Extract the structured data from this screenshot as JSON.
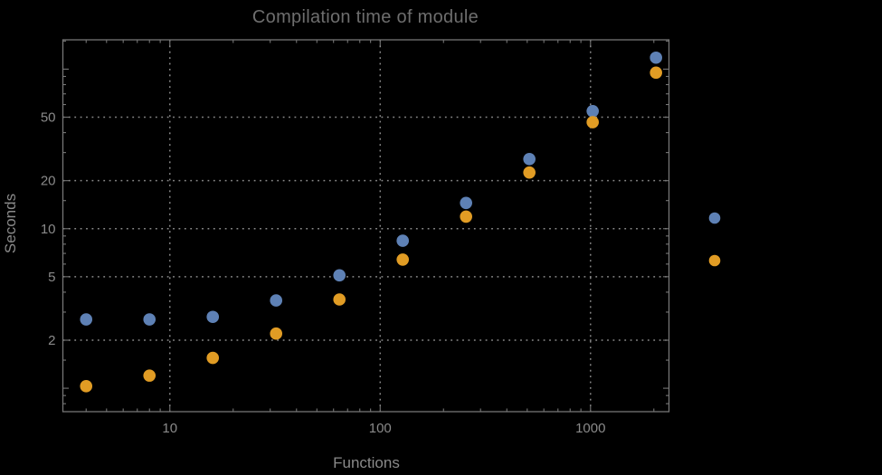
{
  "page": {
    "background": "#000000"
  },
  "colors": {
    "frame": "#757575",
    "grid": "#8A8A8A",
    "tick": "#757575",
    "text": "#8A8A8A",
    "title": "#6E6E6E",
    "series_blue": "#5E81B5",
    "series_orange": "#E19C24"
  },
  "chart_data": {
    "type": "scatter",
    "title": "Compilation time of module",
    "xlabel": "Functions",
    "ylabel": "Seconds",
    "x_scale": "log",
    "y_scale": "log",
    "x_range": [
      3.1,
      2360
    ],
    "y_range": [
      0.713,
      152.7
    ],
    "x_tick_labels": [
      "10",
      "100",
      "1000"
    ],
    "y_tick_labels": [
      "2",
      "5",
      "10",
      "20",
      "50"
    ],
    "x_major_ticks": [
      10,
      100,
      1000
    ],
    "y_major_ticks": [
      2,
      5,
      10,
      20,
      50
    ],
    "x_unlabeled_major_ticks": [],
    "y_unlabeled_major_ticks": [
      1,
      100
    ],
    "x_minor_ticks": [
      4,
      5,
      6,
      7,
      8,
      9,
      20,
      30,
      40,
      50,
      60,
      70,
      80,
      90,
      200,
      300,
      400,
      500,
      600,
      700,
      800,
      900,
      2000
    ],
    "y_minor_ticks": [
      0.8,
      0.9,
      1.5,
      3,
      4,
      6,
      7,
      8,
      9,
      15,
      30,
      40,
      60,
      70,
      80,
      90,
      150
    ],
    "grid": {
      "style": "dotted",
      "x_values": [
        10,
        100,
        1000
      ],
      "y_values": [
        2,
        5,
        10,
        20,
        50
      ]
    },
    "x": [
      4,
      8,
      16,
      32,
      64,
      128,
      256,
      512,
      1024,
      2048
    ],
    "series": [
      {
        "name": "series-1-blue",
        "color": "#5E81B5",
        "values": [
          2.7,
          2.7,
          2.8,
          3.55,
          5.1,
          8.4,
          14.5,
          27.3,
          54.6,
          118
        ]
      },
      {
        "name": "series-2-orange",
        "color": "#E19C24",
        "values": [
          1.03,
          1.2,
          1.55,
          2.2,
          3.6,
          6.4,
          11.9,
          22.5,
          46.5,
          95
        ]
      }
    ],
    "legend": {
      "position": "outside-right",
      "labels_visible": false,
      "entries": [
        {
          "color": "#5E81B5",
          "label": ""
        },
        {
          "color": "#E19C24",
          "label": ""
        }
      ]
    }
  }
}
